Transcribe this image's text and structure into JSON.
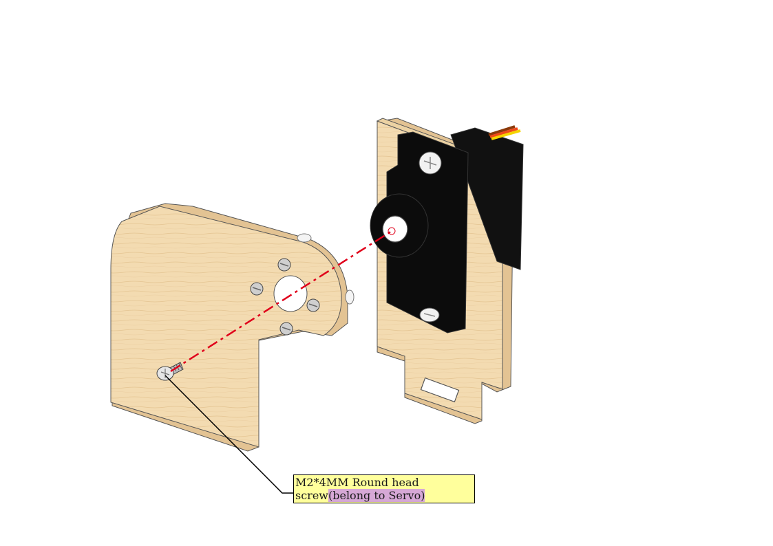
{
  "callout": {
    "line1": "M2*4MM Round head",
    "line2_main": "screw",
    "line2_note": "(belong to Servo)",
    "box_color": "#ffff9c",
    "note_highlight_color": "#d6a8d6"
  },
  "colors": {
    "wood": "#f3dbb1",
    "wood_edge": "#e3c393",
    "servo": "#0c0c0c",
    "axis_line": "#e0001a",
    "screw": "#d9d9d9"
  },
  "parts": [
    "wood-bracket-plate",
    "servo-mount-plate",
    "servo-motor",
    "m2-screw"
  ]
}
